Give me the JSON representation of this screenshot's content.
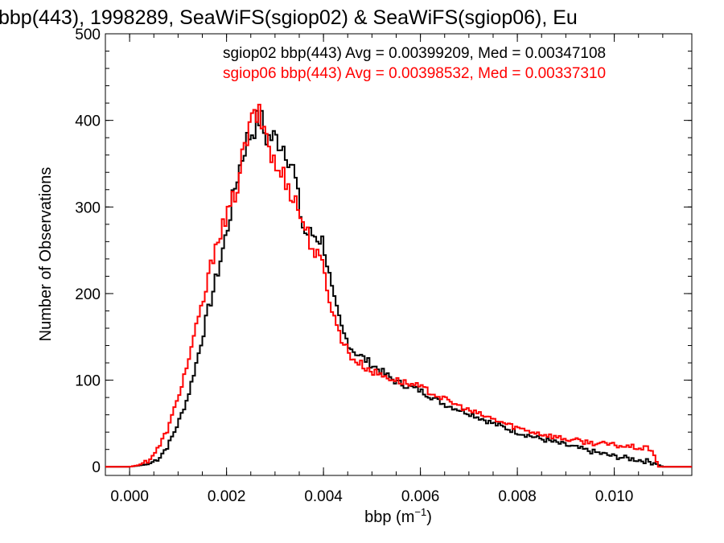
{
  "chart_data": {
    "type": "line",
    "title": "bbp(443), 1998289, SeaWiFS(sgiop02) & SeaWiFS(sgiop06), Eu",
    "xlabel": "bbp (m",
    "xlabel_sup": "−1",
    "xlabel_close": ")",
    "ylabel": "Number of Observations",
    "xlim": [
      -0.0005,
      0.0116
    ],
    "ylim": [
      -10,
      500
    ],
    "xticks": [
      0.0,
      0.002,
      0.004,
      0.006,
      0.008,
      0.01
    ],
    "xtick_labels": [
      "0.000",
      "0.002",
      "0.004",
      "0.006",
      "0.008",
      "0.010"
    ],
    "yticks": [
      0,
      100,
      200,
      300,
      400,
      500
    ],
    "ytick_labels": [
      "0",
      "100",
      "200",
      "300",
      "400",
      "500"
    ],
    "grid": false,
    "legend_position": "top-right",
    "series": [
      {
        "name": "sgiop02",
        "color": "#000000",
        "legend_text": "sgiop02 bbp(443) Avg = 0.00399209, Med = 0.00347108",
        "x": [
          -0.0005,
          0.0,
          0.0004,
          0.0006,
          0.0008,
          0.001,
          0.0012,
          0.0014,
          0.0016,
          0.0018,
          0.002,
          0.0022,
          0.0024,
          0.0026,
          0.0027,
          0.0028,
          0.003,
          0.0032,
          0.0034,
          0.0035,
          0.0036,
          0.0038,
          0.004,
          0.0042,
          0.0044,
          0.0046,
          0.005,
          0.0055,
          0.006,
          0.0065,
          0.007,
          0.0075,
          0.008,
          0.0085,
          0.009,
          0.0095,
          0.01,
          0.0105,
          0.0108,
          0.011,
          0.0116
        ],
        "y": [
          0,
          0,
          3,
          10,
          25,
          50,
          80,
          125,
          175,
          220,
          270,
          330,
          375,
          395,
          405,
          380,
          380,
          370,
          340,
          300,
          270,
          268,
          260,
          195,
          155,
          135,
          118,
          98,
          88,
          72,
          62,
          50,
          40,
          32,
          25,
          18,
          12,
          8,
          5,
          0,
          0
        ]
      },
      {
        "name": "sgiop06",
        "color": "#ff0000",
        "legend_text": "sgiop06 bbp(443) Avg = 0.00398532, Med = 0.00337310",
        "x": [
          -0.0005,
          0.0,
          0.0002,
          0.0004,
          0.0006,
          0.0008,
          0.001,
          0.0012,
          0.0014,
          0.0016,
          0.0018,
          0.002,
          0.0022,
          0.0024,
          0.0026,
          0.0028,
          0.003,
          0.0032,
          0.0034,
          0.0036,
          0.0038,
          0.004,
          0.0042,
          0.0044,
          0.0046,
          0.005,
          0.0055,
          0.006,
          0.0065,
          0.007,
          0.0075,
          0.008,
          0.0085,
          0.009,
          0.0095,
          0.01,
          0.0105,
          0.0108,
          0.0109,
          0.0116
        ],
        "y": [
          0,
          0,
          2,
          8,
          22,
          45,
          80,
          120,
          165,
          210,
          265,
          285,
          320,
          375,
          410,
          390,
          345,
          335,
          310,
          280,
          250,
          230,
          175,
          145,
          125,
          110,
          100,
          92,
          78,
          65,
          55,
          45,
          38,
          32,
          28,
          25,
          22,
          20,
          0,
          0
        ]
      }
    ]
  }
}
